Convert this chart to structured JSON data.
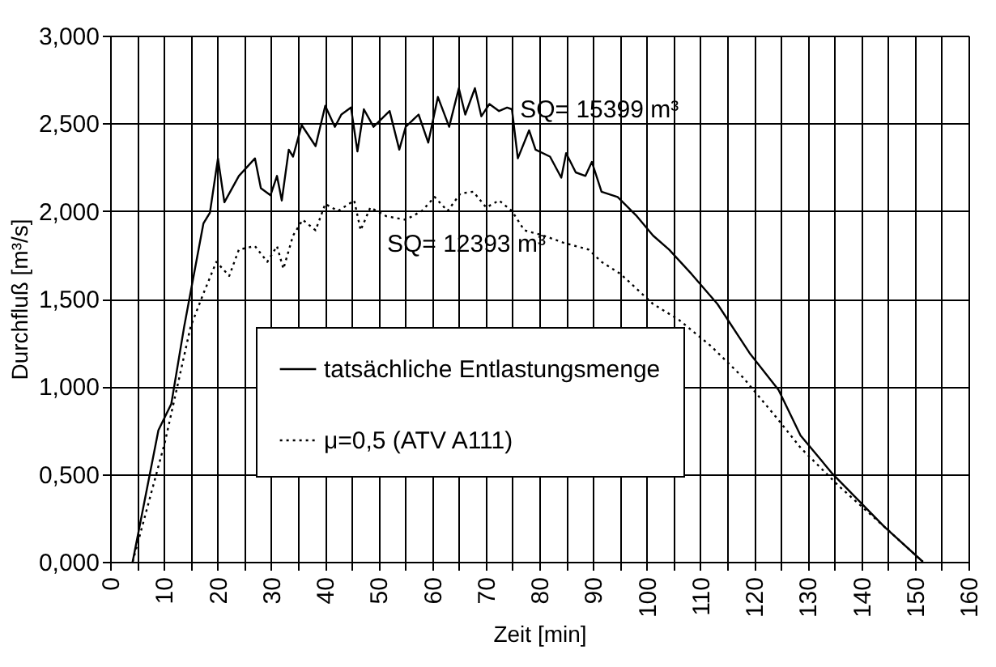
{
  "chart_data": {
    "type": "line",
    "xlabel": "Zeit [min]",
    "ylabel": "Durchfluß [m³/s]",
    "xlim": [
      0,
      160
    ],
    "ylim": [
      0,
      3
    ],
    "xticks": [
      0,
      {
        "value": 5,
        "label": null
      },
      10,
      {
        "value": 15,
        "label": null
      },
      20,
      {
        "value": 25,
        "label": null
      },
      30,
      {
        "value": 35,
        "label": null
      },
      40,
      {
        "value": 45,
        "label": null
      },
      50,
      {
        "value": 55,
        "label": null
      },
      60,
      {
        "value": 65,
        "label": null
      },
      70,
      {
        "value": 75,
        "label": null
      },
      80,
      {
        "value": 85,
        "label": null
      },
      90,
      {
        "value": 95,
        "label": null
      },
      100,
      {
        "value": 105,
        "label": null
      },
      110,
      {
        "value": 115,
        "label": null
      },
      120,
      {
        "value": 125,
        "label": null
      },
      130,
      {
        "value": 135,
        "label": null
      },
      140,
      {
        "value": 145,
        "label": null
      },
      150,
      {
        "value": 155,
        "label": null
      },
      160
    ],
    "yticks": [
      {
        "value": 0,
        "label": "0,000"
      },
      {
        "value": 0.5,
        "label": "0,500"
      },
      {
        "value": 1,
        "label": "1,000"
      },
      {
        "value": 1.5,
        "label": "1,500"
      },
      {
        "value": 2,
        "label": "2,000"
      },
      {
        "value": 2.5,
        "label": "2,500"
      },
      {
        "value": 3,
        "label": "3,000"
      }
    ],
    "grid": true,
    "legend": "left",
    "marker": "none",
    "annotations": [
      "SQ= 15399 m³",
      "SQ= 12393 m³"
    ],
    "series": [
      {
        "name": "tatsächliche Entlastungsmenge",
        "color": "#000000",
        "line_style": "solid",
        "x": [
          4.2,
          9,
          11.4,
          13.8,
          17.4,
          18.6,
          20.1,
          21.3,
          24,
          27,
          28.1,
          29.9,
          31.1,
          32,
          33.3,
          34.1,
          35.7,
          38.3,
          40.1,
          41.9,
          43.1,
          44.9,
          46.1,
          47.3,
          49.1,
          52.1,
          53.9,
          55.1,
          57.5,
          59.3,
          61.1,
          63.2,
          65,
          66.2,
          68,
          69.2,
          70.7,
          72.5,
          74,
          74.9,
          76,
          78.1,
          79.3,
          82,
          84.1,
          85,
          86.8,
          88.6,
          89.8,
          91.6,
          94.6,
          98.2,
          101.2,
          104.2,
          108.4,
          113.2,
          119.2,
          124.6,
          128.7,
          134.7,
          139.5,
          144.3,
          151.5
        ],
        "values": [
          0,
          0.75,
          0.9,
          1.34,
          1.93,
          1.99,
          2.3,
          2.05,
          2.2,
          2.3,
          2.13,
          2.09,
          2.2,
          2.06,
          2.35,
          2.31,
          2.49,
          2.37,
          2.6,
          2.48,
          2.55,
          2.59,
          2.34,
          2.58,
          2.48,
          2.57,
          2.35,
          2.48,
          2.55,
          2.39,
          2.65,
          2.48,
          2.7,
          2.55,
          2.7,
          2.54,
          2.61,
          2.57,
          2.59,
          2.58,
          2.3,
          2.46,
          2.35,
          2.31,
          2.19,
          2.33,
          2.22,
          2.2,
          2.28,
          2.11,
          2.08,
          1.97,
          1.86,
          1.78,
          1.64,
          1.47,
          1.19,
          0.98,
          0.72,
          0.5,
          0.35,
          0.2,
          0
        ]
      },
      {
        "name": "μ=0,5 (ATV A111)",
        "color": "#000000",
        "line_style": "dotted",
        "x": [
          4.2,
          10.2,
          15,
          17.4,
          19.8,
          22.2,
          24,
          27,
          29.3,
          31.1,
          32.3,
          34.1,
          35.9,
          38.3,
          40.1,
          42.5,
          45.5,
          46.7,
          48.5,
          51.5,
          55.1,
          58.1,
          60.5,
          62.9,
          65.3,
          67.7,
          70.1,
          72.5,
          74.9,
          77.2,
          80.8,
          84.4,
          89.2,
          91.6,
          95.2,
          101.2,
          106,
          112,
          118,
          124,
          128.7,
          135.9,
          144.3,
          151.5
        ],
        "values": [
          0,
          0.68,
          1.34,
          1.53,
          1.71,
          1.63,
          1.78,
          1.8,
          1.71,
          1.8,
          1.67,
          1.86,
          1.95,
          1.89,
          2.04,
          2,
          2.06,
          1.89,
          2.02,
          1.97,
          1.95,
          2,
          2.08,
          2,
          2.1,
          2.11,
          2.02,
          2.06,
          2,
          1.89,
          1.86,
          1.82,
          1.78,
          1.71,
          1.64,
          1.47,
          1.38,
          1.23,
          1.05,
          0.83,
          0.65,
          0.43,
          0.2,
          0
        ]
      }
    ]
  }
}
